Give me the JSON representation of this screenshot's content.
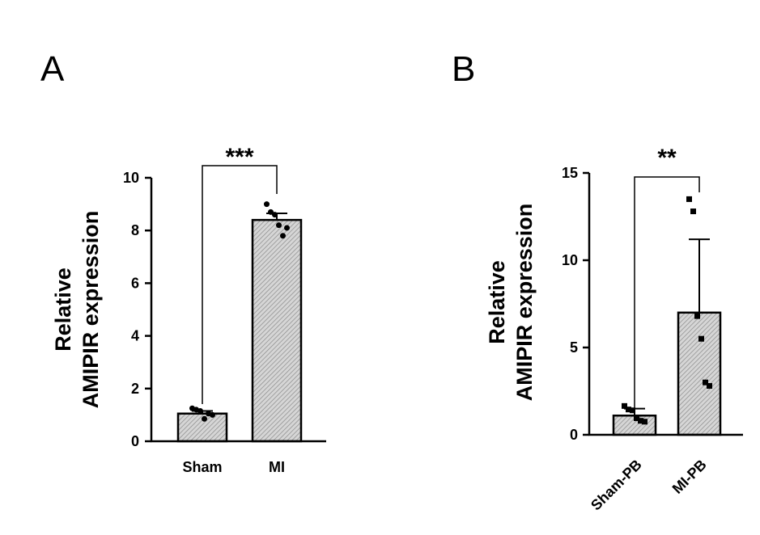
{
  "chart_data": [
    {
      "panel": "A",
      "type": "bar",
      "title": "",
      "ylabel_lines": [
        "Relative",
        "AMIPIR expression"
      ],
      "xlabel": "",
      "categories": [
        "Sham",
        "MI"
      ],
      "values": [
        1.05,
        8.4
      ],
      "error": [
        0.1,
        0.25
      ],
      "points": [
        [
          1.25,
          1.2,
          1.15,
          0.85,
          1.05,
          1.0
        ],
        [
          9.0,
          8.7,
          8.6,
          8.2,
          7.8,
          8.1
        ]
      ],
      "ylim": [
        0,
        10
      ],
      "yticks": [
        0,
        2,
        4,
        6,
        8,
        10
      ],
      "significance": "***",
      "point_shape": "circle",
      "grid": false
    },
    {
      "panel": "B",
      "type": "bar",
      "title": "",
      "ylabel_lines": [
        "Relative",
        "AMIPIR expression"
      ],
      "xlabel": "",
      "categories": [
        "Sham-PB",
        "MI-PB"
      ],
      "values": [
        1.1,
        7.0
      ],
      "error": [
        0.4,
        4.2
      ],
      "points": [
        [
          1.65,
          1.45,
          1.4,
          0.95,
          0.8,
          0.75
        ],
        [
          13.5,
          12.8,
          6.8,
          5.5,
          3.0,
          2.8
        ]
      ],
      "ylim": [
        0,
        15
      ],
      "yticks": [
        0,
        5,
        10,
        15
      ],
      "significance": "**",
      "point_shape": "square",
      "grid": false
    }
  ]
}
